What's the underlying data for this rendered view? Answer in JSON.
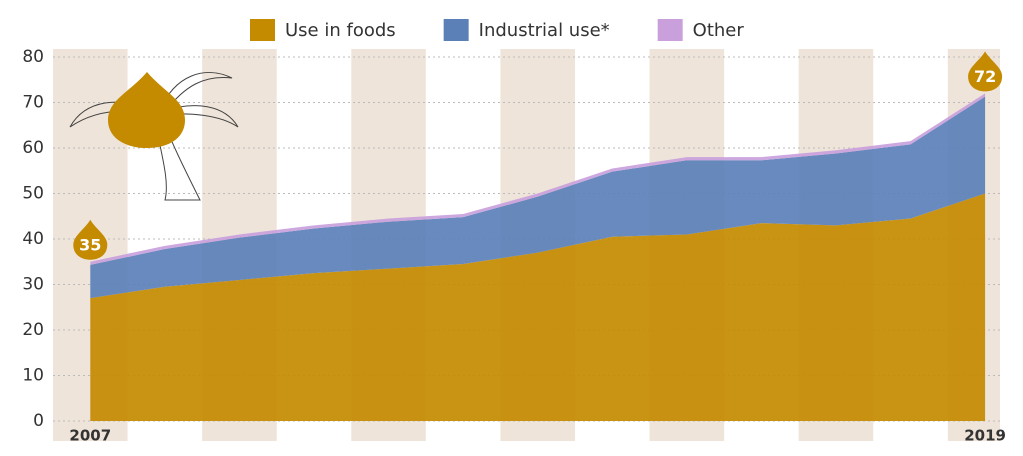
{
  "chart_data": {
    "type": "stacked-area",
    "x": [
      2007,
      2008,
      2009,
      2010,
      2011,
      2012,
      2013,
      2014,
      2015,
      2016,
      2017,
      2018,
      2019
    ],
    "series": [
      {
        "name": "Use in foods",
        "color": "#c48a00",
        "values": [
          27,
          29.5,
          31,
          32.5,
          33.5,
          34.5,
          37,
          40.5,
          41,
          43.5,
          43,
          44.5,
          50
        ]
      },
      {
        "name": "Industrial use*",
        "color": "#5b80b8",
        "values": [
          7.3,
          8.3,
          9.3,
          9.8,
          10.3,
          10.3,
          12.3,
          14.3,
          16.3,
          13.8,
          15.8,
          16.3,
          21.3
        ]
      },
      {
        "name": "Other",
        "color": "#c9a0dc",
        "values": [
          0.7,
          0.7,
          0.7,
          0.7,
          0.7,
          0.7,
          0.7,
          0.7,
          0.7,
          0.7,
          0.7,
          0.7,
          0.7
        ]
      }
    ],
    "annotations": [
      "35",
      "72"
    ],
    "xlim": [
      2006.5,
      2019.2
    ],
    "xticks": [
      2007,
      2019
    ],
    "ylim": [
      0,
      80
    ],
    "yticks": [
      0,
      10,
      20,
      30,
      40,
      50,
      60,
      70,
      80
    ],
    "grid": true,
    "legend": "top"
  }
}
